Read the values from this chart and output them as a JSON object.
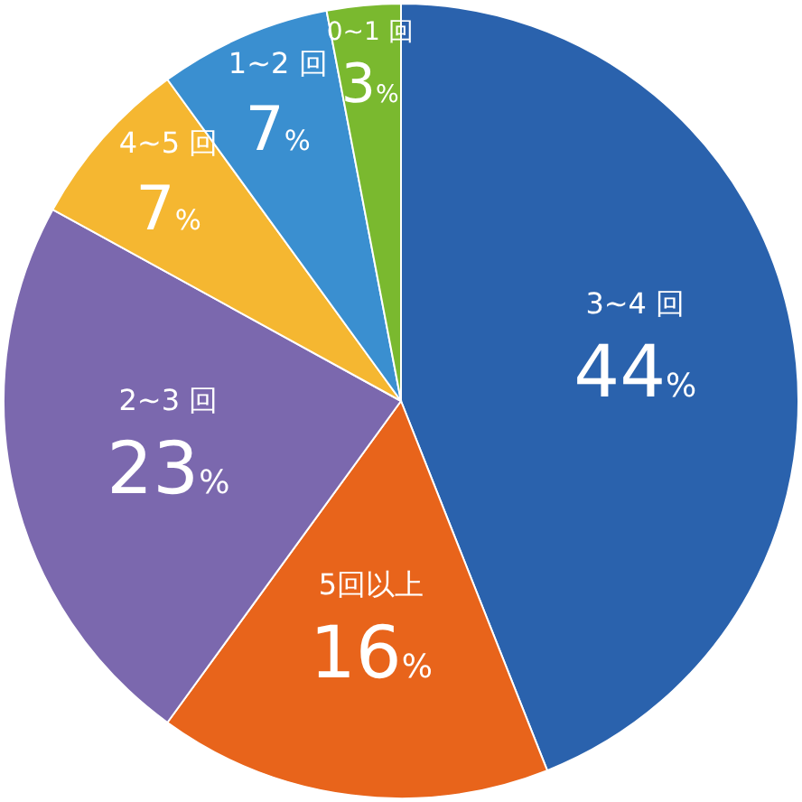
{
  "chart_data": {
    "type": "pie",
    "categories": [
      "3~4 回",
      "5回以上",
      "2~3 回",
      "4~5 回",
      "1~2 回",
      "0~1 回"
    ],
    "values": [
      44,
      16,
      23,
      7,
      7,
      3
    ],
    "value_labels": [
      "44%",
      "16%",
      "23%",
      "7%",
      "7%",
      "3%"
    ],
    "colors": [
      "#2a62ad",
      "#e8641b",
      "#7b68ae",
      "#f5b731",
      "#3a8fd0",
      "#7ab92f"
    ]
  }
}
